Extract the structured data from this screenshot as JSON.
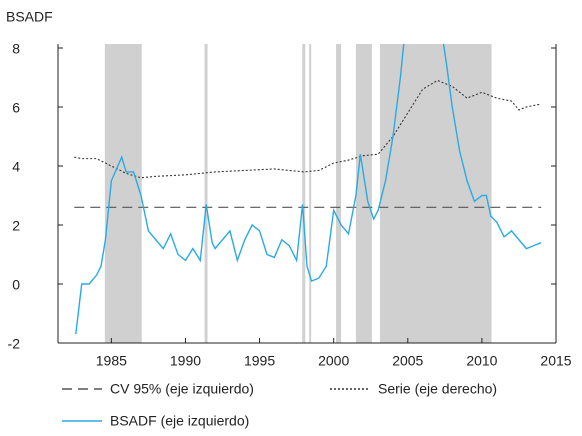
{
  "chart_data": {
    "type": "line",
    "y_axis_label": "BSADF",
    "xlim": [
      1981.4,
      2015
    ],
    "xticks": [
      1985,
      1990,
      1995,
      2000,
      2005,
      2010,
      2015
    ],
    "ylim": [
      -2,
      8
    ],
    "yticks": [
      8,
      6,
      4,
      2,
      0,
      -2
    ],
    "y2lim": [
      -2,
      8
    ],
    "shade_color": "#d0d0d0",
    "shaded_periods": [
      [
        1984.56,
        1987.05
      ],
      [
        1991.29,
        1991.49
      ],
      [
        1997.88,
        1998.08
      ],
      [
        1998.35,
        1998.48
      ],
      [
        2000.16,
        2000.5
      ],
      [
        2001.5,
        2002.58
      ],
      [
        2003.12,
        2010.65
      ]
    ],
    "series": [
      {
        "name": "CV 95% (eje izquierdo)",
        "color": "#555555",
        "style": "dashed",
        "x": [
          1982.5,
          2014
        ],
        "values": [
          2.6,
          2.6
        ]
      },
      {
        "name": "Serie (eje derecho)",
        "color": "#333333",
        "style": "dotted",
        "axis": "y2",
        "x": [
          1982.5,
          1983,
          1984,
          1985,
          1986,
          1987,
          1988,
          1990,
          1992,
          1994,
          1996,
          1998,
          1999,
          2000,
          2001,
          2002,
          2003,
          2004,
          2005,
          2006,
          2007,
          2008,
          2009,
          2010,
          2011,
          2012,
          2012.5,
          2013,
          2014
        ],
        "values": [
          4.3,
          4.25,
          4.25,
          4.0,
          3.75,
          3.6,
          3.65,
          3.7,
          3.8,
          3.85,
          3.9,
          3.8,
          3.85,
          4.1,
          4.2,
          4.35,
          4.4,
          5.0,
          5.8,
          6.6,
          6.9,
          6.7,
          6.3,
          6.5,
          6.3,
          6.2,
          5.9,
          6.0,
          6.1
        ]
      },
      {
        "name": "BSADF (eje izquierdo)",
        "color": "#29abe2",
        "style": "solid",
        "x": [
          1982.6,
          1983,
          1983.5,
          1984,
          1984.3,
          1984.6,
          1985,
          1985.7,
          1986,
          1986.5,
          1987,
          1987.5,
          1988,
          1988.5,
          1989,
          1989.5,
          1990,
          1990.5,
          1991,
          1991.4,
          1991.8,
          1992,
          1993,
          1993.5,
          1994,
          1994.5,
          1995,
          1995.5,
          1996,
          1996.5,
          1997,
          1997.5,
          1997.9,
          1998.2,
          1998.5,
          1999,
          1999.5,
          2000,
          2000.5,
          2001,
          2001.5,
          2001.8,
          2002.3,
          2002.7,
          2003,
          2003.5,
          2004,
          2004.5,
          2004.8,
          2005.5,
          2006.5,
          2007.3,
          2007.6,
          2008,
          2008.5,
          2009,
          2009.5,
          2010,
          2010.3,
          2010.6,
          2011,
          2011.5,
          2012,
          2012.5,
          2013,
          2013.5,
          2014
        ],
        "values": [
          -1.7,
          0.0,
          0.0,
          0.3,
          0.6,
          1.5,
          3.5,
          4.3,
          3.8,
          3.8,
          3.0,
          1.8,
          1.5,
          1.2,
          1.7,
          1.0,
          0.8,
          1.2,
          0.8,
          2.7,
          1.4,
          1.2,
          1.8,
          0.8,
          1.5,
          2.0,
          1.8,
          1.0,
          0.9,
          1.5,
          1.3,
          0.8,
          2.7,
          0.6,
          0.1,
          0.2,
          0.6,
          2.5,
          2.0,
          1.7,
          3.0,
          4.4,
          2.8,
          2.2,
          2.5,
          3.5,
          5.0,
          7.0,
          8.5,
          9.5,
          9.5,
          8.5,
          7.5,
          6.0,
          4.5,
          3.5,
          2.8,
          3.0,
          3.0,
          2.3,
          2.1,
          1.6,
          1.8,
          1.5,
          1.2,
          1.3,
          1.4
        ]
      }
    ]
  }
}
